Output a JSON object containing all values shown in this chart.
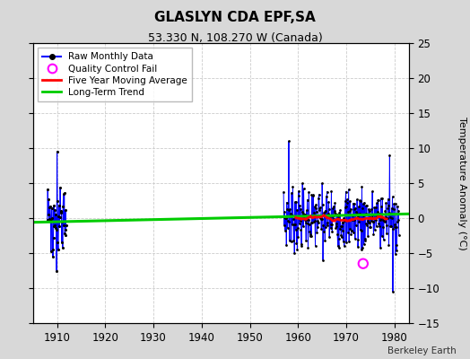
{
  "title": "GLASLYN CDA EPF,SA",
  "subtitle": "53.330 N, 108.270 W (Canada)",
  "ylabel_right": "Temperature Anomaly (°C)",
  "credit": "Berkeley Earth",
  "xlim": [
    1905,
    1983
  ],
  "ylim": [
    -15,
    25
  ],
  "yticks": [
    -15,
    -10,
    -5,
    0,
    5,
    10,
    15,
    20,
    25
  ],
  "xticks": [
    1910,
    1920,
    1930,
    1940,
    1950,
    1960,
    1970,
    1980
  ],
  "bg_color": "#d8d8d8",
  "plot_bg_color": "#ffffff",
  "grid_color": "#cccccc",
  "long_term_trend": {
    "x": [
      1905,
      1983
    ],
    "y": [
      -0.6,
      0.6
    ]
  },
  "qc_fail": {
    "year": 1973.5,
    "value": -6.5
  },
  "early_seed": 99,
  "main_seed": 7,
  "figsize": [
    5.24,
    4.0
  ],
  "dpi": 100
}
